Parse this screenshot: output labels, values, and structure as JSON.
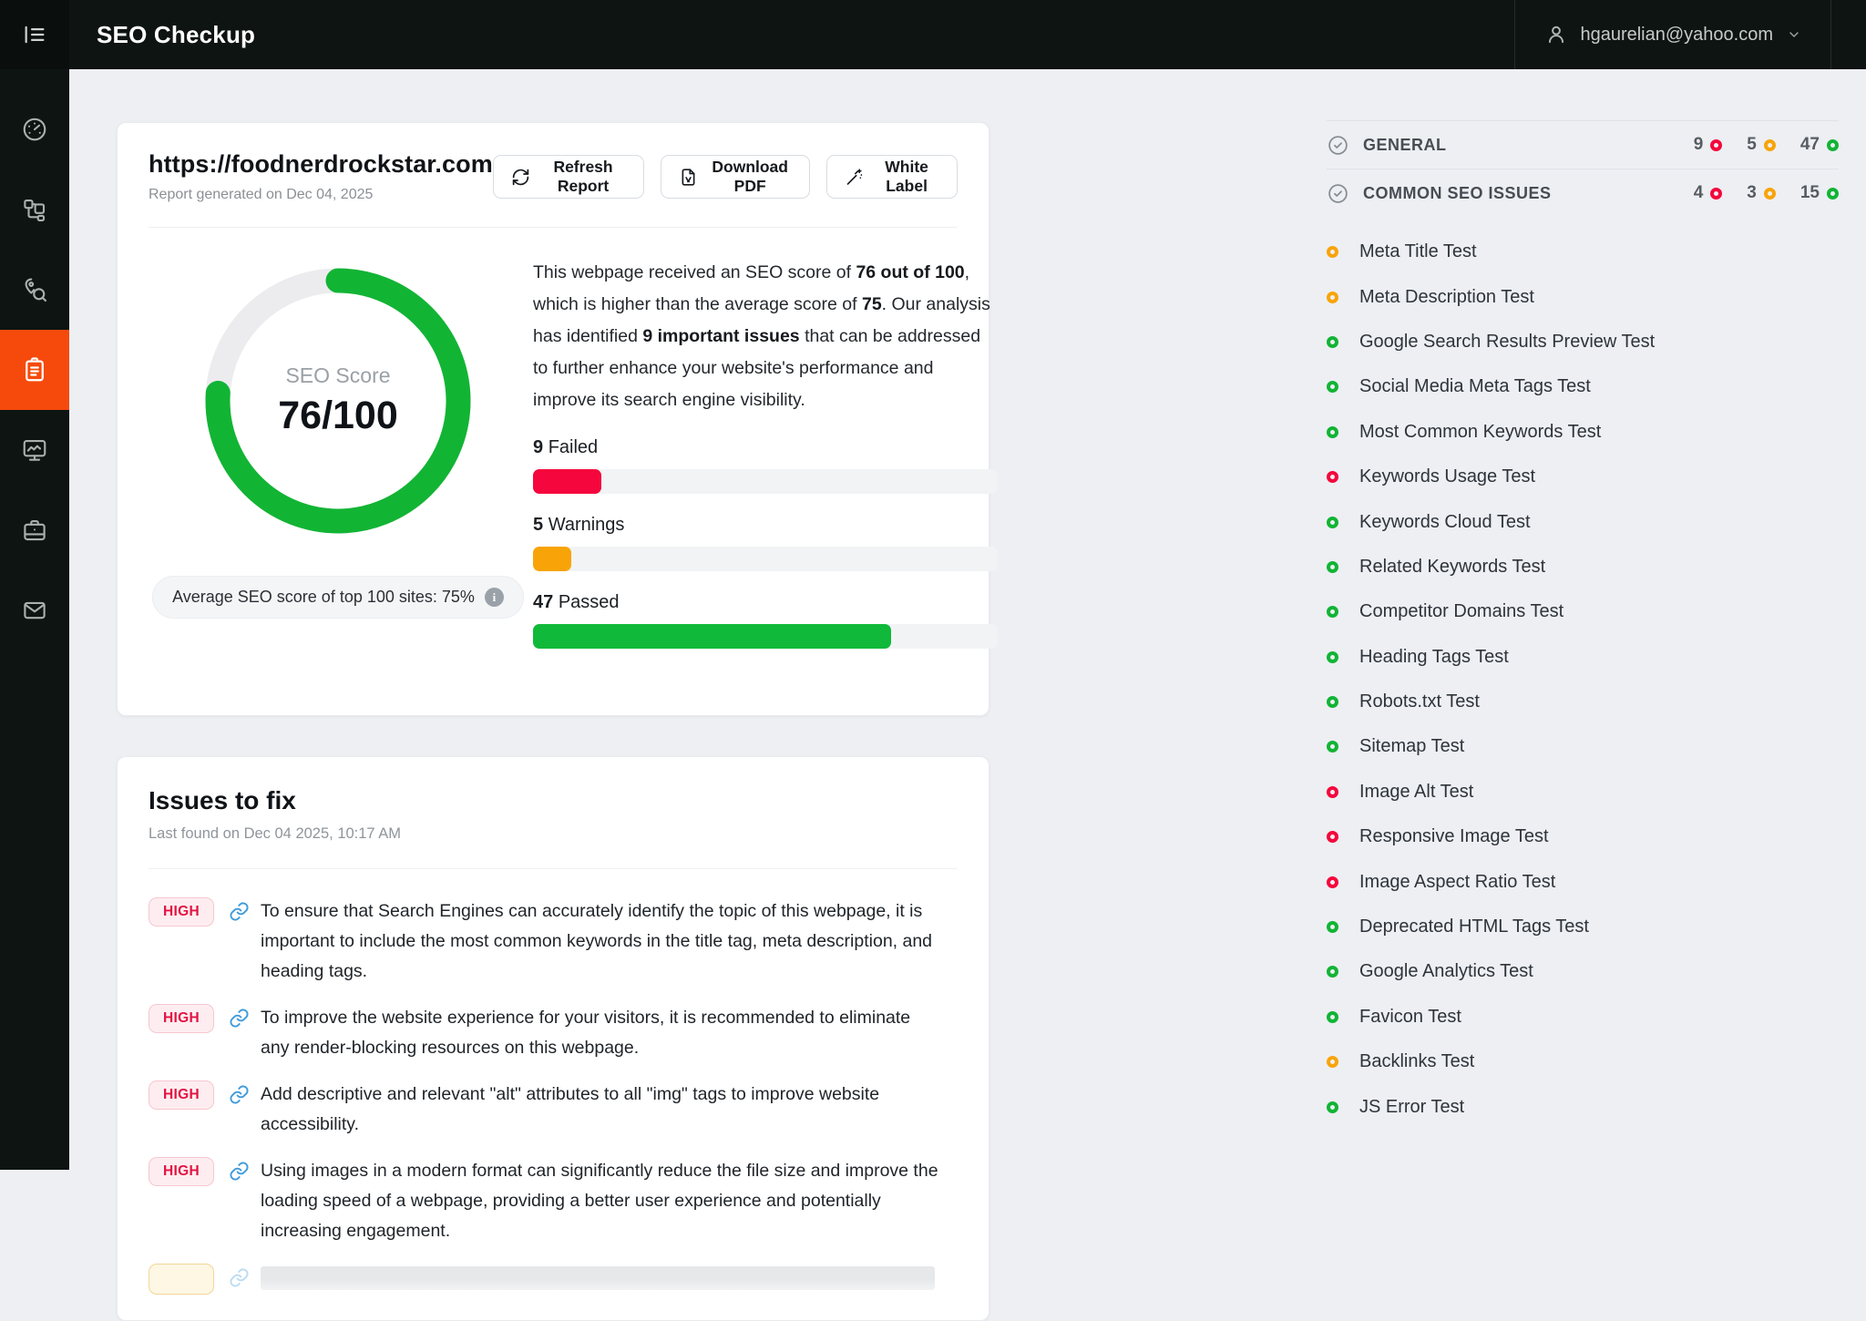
{
  "topbar": {
    "title": "SEO Checkup",
    "user_email": "hgaurelian@yahoo.com"
  },
  "sidebar": {
    "items": [
      {
        "icon": "gauge-icon",
        "active": false
      },
      {
        "icon": "sites-blocks-icon",
        "active": false
      },
      {
        "icon": "local-search-icon",
        "active": false
      },
      {
        "icon": "report-clipboard-icon",
        "active": true
      },
      {
        "icon": "monitoring-icon",
        "active": false
      },
      {
        "icon": "briefcase-icon",
        "active": false
      },
      {
        "icon": "mail-icon",
        "active": false
      }
    ]
  },
  "report": {
    "url": "https://foodnerdrockstar.com",
    "generated": "Report generated on Dec 04, 2025",
    "buttons": {
      "refresh": "Refresh Report",
      "download": "Download PDF",
      "white_label": "White Label"
    },
    "score": {
      "label": "SEO Score",
      "value": "76/100",
      "percent": 76,
      "average_note": "Average SEO score of top 100 sites: 75%"
    },
    "summary": {
      "s1": "This webpage received an SEO score of ",
      "s2": "76 out of 100",
      "s3": ", which is higher than the average score of ",
      "s4": "75",
      "s5": ". Our analysis has identified ",
      "s6": "9 important issues",
      "s7": " that can be addressed to further enhance your website's performance and improve its search engine visibility."
    },
    "stats": [
      {
        "count": "9",
        "label": "Failed",
        "status": "fail",
        "pct": 14.75
      },
      {
        "count": "5",
        "label": "Warnings",
        "status": "warn",
        "pct": 8.2
      },
      {
        "count": "47",
        "label": "Passed",
        "status": "pass",
        "pct": 77
      }
    ]
  },
  "issues": {
    "title": "Issues to fix",
    "subtitle": "Last found on Dec 04 2025, 10:17 AM",
    "items": [
      {
        "severity": "HIGH",
        "text": "To ensure that Search Engines can accurately identify the topic of this webpage, it is important to include the most common keywords in the title tag, meta description, and heading tags."
      },
      {
        "severity": "HIGH",
        "text": "To improve the website experience for your visitors, it is recommended to eliminate any render-blocking resources on this webpage."
      },
      {
        "severity": "HIGH",
        "text": "Add descriptive and relevant \"alt\" attributes to all \"img\" tags to improve website accessibility."
      },
      {
        "severity": "HIGH",
        "text": "Using images in a modern format can significantly reduce the file size and improve the loading speed of a webpage, providing a better user experience and potentially increasing engagement."
      }
    ]
  },
  "right_panel": {
    "sections": [
      {
        "label": "GENERAL",
        "failed": "9",
        "warnings": "5",
        "passed": "47"
      },
      {
        "label": "COMMON SEO ISSUES",
        "failed": "4",
        "warnings": "3",
        "passed": "15"
      }
    ],
    "tests": [
      {
        "label": "Meta Title Test",
        "status": "warn"
      },
      {
        "label": "Meta Description Test",
        "status": "warn"
      },
      {
        "label": "Google Search Results Preview Test",
        "status": "pass"
      },
      {
        "label": "Social Media Meta Tags Test",
        "status": "pass"
      },
      {
        "label": "Most Common Keywords Test",
        "status": "pass"
      },
      {
        "label": "Keywords Usage Test",
        "status": "fail"
      },
      {
        "label": "Keywords Cloud Test",
        "status": "pass"
      },
      {
        "label": "Related Keywords Test",
        "status": "pass"
      },
      {
        "label": "Competitor Domains Test",
        "status": "pass"
      },
      {
        "label": "Heading Tags Test",
        "status": "pass"
      },
      {
        "label": "Robots.txt Test",
        "status": "pass"
      },
      {
        "label": "Sitemap Test",
        "status": "pass"
      },
      {
        "label": "Image Alt Test",
        "status": "fail"
      },
      {
        "label": "Responsive Image Test",
        "status": "fail"
      },
      {
        "label": "Image Aspect Ratio Test",
        "status": "fail"
      },
      {
        "label": "Deprecated HTML Tags Test",
        "status": "pass"
      },
      {
        "label": "Google Analytics Test",
        "status": "pass"
      },
      {
        "label": "Favicon Test",
        "status": "pass"
      },
      {
        "label": "Backlinks Test",
        "status": "warn"
      },
      {
        "label": "JS Error Test",
        "status": "pass"
      }
    ]
  },
  "colors": {
    "accent_active": "#f54a0b",
    "fail": "#f5063c",
    "warn": "#f8a408",
    "pass": "#12b434",
    "topbar_bg": "#0d1412"
  }
}
